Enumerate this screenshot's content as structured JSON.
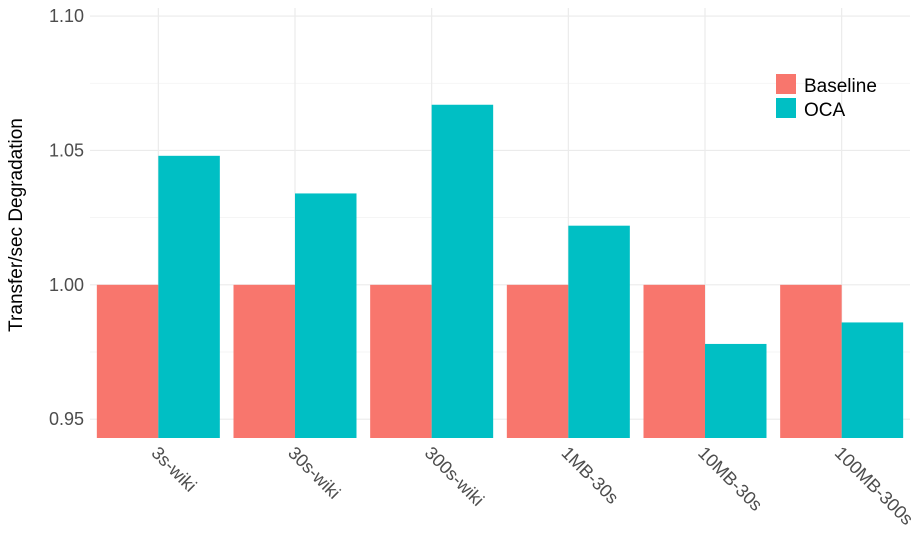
{
  "chart_data": {
    "type": "bar",
    "title": "",
    "xlabel": "",
    "ylabel": "Transfer/sec Degradation",
    "categories": [
      "3s-wiki",
      "30s-wiki",
      "300s-wiki",
      "1MB-30s",
      "10MB-30s",
      "100MB-300s"
    ],
    "series": [
      {
        "name": "Baseline",
        "color": "#F8766D",
        "values": [
          1.0,
          1.0,
          1.0,
          1.0,
          1.0,
          1.0
        ]
      },
      {
        "name": "OCA",
        "color": "#00BFC4",
        "values": [
          1.048,
          1.034,
          1.067,
          1.022,
          0.978,
          0.986
        ]
      }
    ],
    "ylim": [
      0.943,
      1.103
    ],
    "yticks": [
      0.95,
      1.0,
      1.05,
      1.1
    ],
    "ytick_labels": [
      "0.95",
      "1.00",
      "1.05",
      "1.10"
    ],
    "bar_base": 0.943,
    "grid": true,
    "legend_position": "top-right",
    "x_tick_rotation": "-45"
  }
}
